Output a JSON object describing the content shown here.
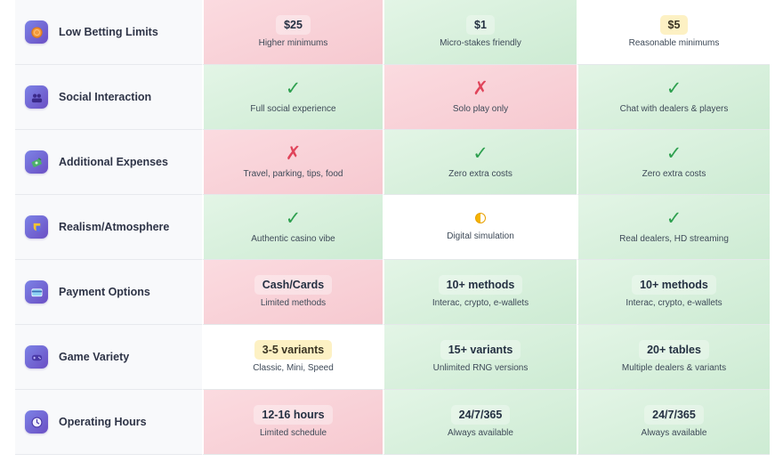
{
  "rows": [
    {
      "feature": "Low Betting Limits",
      "icon": "coin-icon",
      "cells": [
        {
          "kind": "value",
          "tone": "bad",
          "value": "$25",
          "sub": "Higher minimums"
        },
        {
          "kind": "value",
          "tone": "good",
          "value": "$1",
          "sub": "Micro-stakes friendly"
        },
        {
          "kind": "value",
          "tone": "neutral",
          "value": "$5",
          "sub": "Reasonable minimums"
        }
      ]
    },
    {
      "feature": "Social Interaction",
      "icon": "people-icon",
      "cells": [
        {
          "kind": "check",
          "tone": "good",
          "mark": "✓",
          "sub": "Full social experience"
        },
        {
          "kind": "cross",
          "tone": "bad",
          "mark": "✗",
          "sub": "Solo play only"
        },
        {
          "kind": "check",
          "tone": "good",
          "mark": "✓",
          "sub": "Chat with dealers & players"
        }
      ]
    },
    {
      "feature": "Additional Expenses",
      "icon": "money-icon",
      "cells": [
        {
          "kind": "cross",
          "tone": "bad",
          "mark": "✗",
          "sub": "Travel, parking, tips, food"
        },
        {
          "kind": "check",
          "tone": "good",
          "mark": "✓",
          "sub": "Zero extra costs"
        },
        {
          "kind": "check",
          "tone": "good",
          "mark": "✓",
          "sub": "Zero extra costs"
        }
      ]
    },
    {
      "feature": "Realism/Atmosphere",
      "icon": "mask-icon",
      "cells": [
        {
          "kind": "check",
          "tone": "good",
          "mark": "✓",
          "sub": "Authentic casino vibe"
        },
        {
          "kind": "half",
          "tone": "neutral",
          "sub": "Digital simulation"
        },
        {
          "kind": "check",
          "tone": "good",
          "mark": "✓",
          "sub": "Real dealers, HD streaming"
        }
      ]
    },
    {
      "feature": "Payment Options",
      "icon": "credit-card-icon",
      "cells": [
        {
          "kind": "value",
          "tone": "bad",
          "value": "Cash/Cards",
          "sub": "Limited methods"
        },
        {
          "kind": "value",
          "tone": "good",
          "value": "10+ methods",
          "sub": "Interac, crypto, e-wallets"
        },
        {
          "kind": "value",
          "tone": "good",
          "value": "10+ methods",
          "sub": "Interac, crypto, e-wallets"
        }
      ]
    },
    {
      "feature": "Game Variety",
      "icon": "gamepad-icon",
      "cells": [
        {
          "kind": "value",
          "tone": "neutral",
          "value": "3-5 variants",
          "sub": "Classic, Mini, Speed"
        },
        {
          "kind": "value",
          "tone": "good",
          "value": "15+ variants",
          "sub": "Unlimited RNG versions"
        },
        {
          "kind": "value",
          "tone": "good",
          "value": "20+ tables",
          "sub": "Multiple dealers & variants"
        }
      ]
    },
    {
      "feature": "Operating Hours",
      "icon": "clock-icon",
      "cells": [
        {
          "kind": "value",
          "tone": "bad",
          "value": "12-16 hours",
          "sub": "Limited schedule"
        },
        {
          "kind": "value",
          "tone": "good",
          "value": "24/7/365",
          "sub": "Always available"
        },
        {
          "kind": "value",
          "tone": "good",
          "value": "24/7/365",
          "sub": "Always available"
        }
      ]
    }
  ],
  "colors": {
    "bad_bg": "#f8d3d9",
    "good_bg": "#d7efdc",
    "neutral_bg": "#ffffff",
    "check": "#2ea04f",
    "cross": "#e0445a",
    "icon_gradient_start": "#7c83e6",
    "icon_gradient_end": "#6b4fc4",
    "highlight_chip": "#fdf1c4"
  }
}
